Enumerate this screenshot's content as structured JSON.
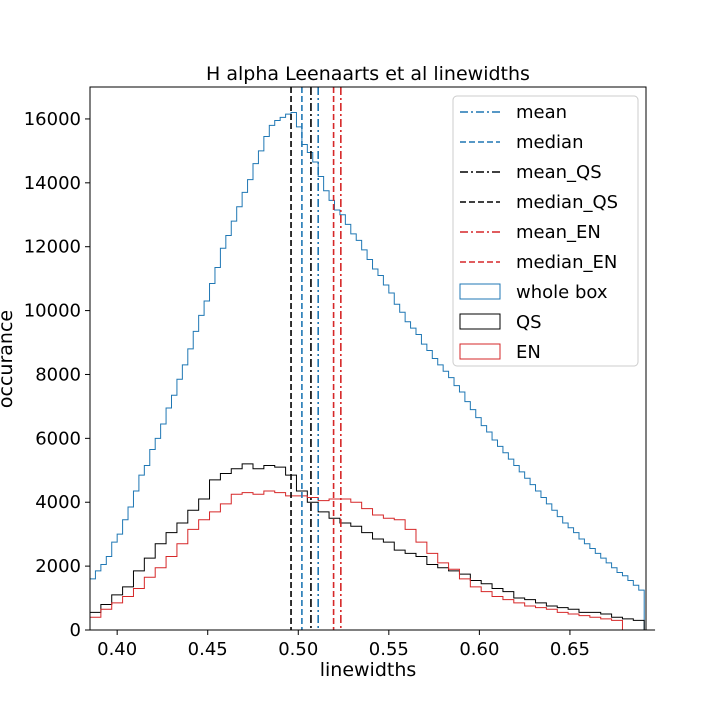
{
  "chart_data": {
    "type": "histogram",
    "title": "H alpha Leenaarts et al linewidths",
    "xlabel": "linewidths",
    "ylabel": "occurance",
    "xlim": [
      0.385,
      0.692
    ],
    "ylim": [
      0,
      17000
    ],
    "x_ticks": [
      0.4,
      0.45,
      0.5,
      0.55,
      0.6,
      0.65
    ],
    "x_tick_labels": [
      "0.40",
      "0.45",
      "0.50",
      "0.55",
      "0.60",
      "0.65"
    ],
    "y_ticks": [
      0,
      2000,
      4000,
      6000,
      8000,
      10000,
      12000,
      14000,
      16000
    ],
    "y_tick_labels": [
      "0",
      "2000",
      "4000",
      "6000",
      "8000",
      "10000",
      "12000",
      "14000",
      "16000"
    ],
    "grid": false,
    "legend_position": "top-right",
    "histograms": [
      {
        "name": "whole box",
        "color": "#1f77b4",
        "bin_start": 0.385,
        "bin_width": 0.003,
        "counts": [
          1600,
          1850,
          2050,
          2300,
          2750,
          3000,
          3450,
          3850,
          4350,
          4850,
          5150,
          5650,
          6000,
          6450,
          6950,
          7350,
          7850,
          8300,
          8800,
          9350,
          9850,
          10300,
          10850,
          11350,
          11950,
          12350,
          12800,
          13250,
          13700,
          14100,
          14600,
          15000,
          15450,
          15800,
          15950,
          16050,
          16150,
          16200,
          15750,
          15200,
          14950,
          14650,
          14200,
          13750,
          13450,
          13150,
          13000,
          12700,
          12400,
          12200,
          11900,
          11600,
          11300,
          11100,
          10800,
          10550,
          10200,
          9950,
          9650,
          9450,
          9250,
          8950,
          8750,
          8500,
          8300,
          8100,
          7900,
          7650,
          7450,
          7150,
          6900,
          6650,
          6400,
          6200,
          5950,
          5750,
          5550,
          5350,
          5150,
          4950,
          4750,
          4550,
          4350,
          4150,
          3950,
          3750,
          3550,
          3350,
          3200,
          3050,
          2850,
          2700,
          2550,
          2400,
          2250,
          2100,
          1950,
          1800,
          1700,
          1550,
          1400,
          1250,
          0
        ]
      },
      {
        "name": "QS",
        "color": "#000000",
        "bin_start": 0.385,
        "bin_width": 0.006,
        "counts": [
          550,
          800,
          1100,
          1350,
          1850,
          2250,
          2700,
          3050,
          3350,
          3750,
          4100,
          4700,
          4900,
          5050,
          5200,
          5050,
          5150,
          5100,
          4850,
          4350,
          4000,
          3700,
          3500,
          3350,
          3250,
          3050,
          2850,
          2750,
          2500,
          2400,
          2300,
          2050,
          1950,
          1850,
          1750,
          1550,
          1450,
          1300,
          1200,
          1000,
          950,
          850,
          750,
          700,
          650,
          550,
          550,
          500,
          400,
          350,
          300,
          0
        ]
      },
      {
        "name": "EN",
        "color": "#d62728",
        "bin_start": 0.385,
        "bin_width": 0.006,
        "counts": [
          400,
          650,
          850,
          1050,
          1300,
          1650,
          1950,
          2300,
          2700,
          3150,
          3450,
          3700,
          3950,
          4250,
          4300,
          4250,
          4350,
          4300,
          4200,
          4200,
          4150,
          4050,
          4100,
          4100,
          4000,
          3800,
          3600,
          3500,
          3450,
          3150,
          2750,
          2400,
          2100,
          1900,
          1600,
          1350,
          1200,
          1050,
          950,
          850,
          750,
          700,
          650,
          550,
          500,
          450,
          400,
          350,
          300,
          0
        ]
      }
    ],
    "vertical_lines": [
      {
        "name": "mean",
        "x": 0.511,
        "color": "#1f77b4",
        "style": "dashdot"
      },
      {
        "name": "median",
        "x": 0.502,
        "color": "#1f77b4",
        "style": "dashed"
      },
      {
        "name": "mean_QS",
        "x": 0.507,
        "color": "#000000",
        "style": "dashdot"
      },
      {
        "name": "median_QS",
        "x": 0.496,
        "color": "#000000",
        "style": "dashed"
      },
      {
        "name": "mean_EN",
        "x": 0.5235,
        "color": "#d62728",
        "style": "dashdot"
      },
      {
        "name": "median_EN",
        "x": 0.5195,
        "color": "#d62728",
        "style": "dashed"
      }
    ],
    "legend": [
      {
        "label": "mean",
        "kind": "line",
        "color": "#1f77b4",
        "style": "dashdot"
      },
      {
        "label": "median",
        "kind": "line",
        "color": "#1f77b4",
        "style": "dashed"
      },
      {
        "label": "mean_QS",
        "kind": "line",
        "color": "#000000",
        "style": "dashdot"
      },
      {
        "label": "median_QS",
        "kind": "line",
        "color": "#000000",
        "style": "dashed"
      },
      {
        "label": "mean_EN",
        "kind": "line",
        "color": "#d62728",
        "style": "dashdot"
      },
      {
        "label": "median_EN",
        "kind": "line",
        "color": "#d62728",
        "style": "dashed"
      },
      {
        "label": "whole box",
        "kind": "patch",
        "color": "#1f77b4"
      },
      {
        "label": "QS",
        "kind": "patch",
        "color": "#000000"
      },
      {
        "label": "EN",
        "kind": "patch",
        "color": "#d62728"
      }
    ]
  }
}
